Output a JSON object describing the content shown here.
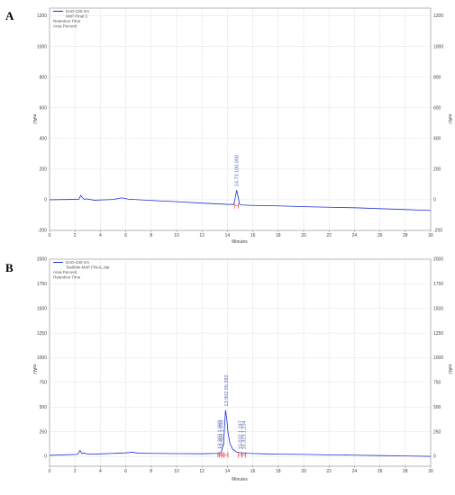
{
  "chart_data": [
    {
      "panel_label": "A",
      "type": "line",
      "xlabel": "Minutes",
      "ylabel": "mAU",
      "xlim": [
        0,
        30
      ],
      "ylim": [
        -200,
        1250
      ],
      "x_ticks": [
        0,
        2,
        4,
        6,
        8,
        10,
        12,
        14,
        16,
        18,
        20,
        22,
        24,
        26,
        28,
        30
      ],
      "y_ticks": [
        -200,
        0,
        200,
        400,
        600,
        800,
        1000,
        1200
      ],
      "grid": "dashed",
      "legend_lines": [
        "DAD-225 nm",
        "MnP Final 3",
        "Retention Time",
        "Area Percent"
      ],
      "series": [
        {
          "name": "MnP Final 3",
          "x": [
            0,
            2.3,
            2.45,
            2.6,
            2.75,
            2.9,
            3.5,
            5.0,
            5.5,
            5.7,
            6.2,
            8,
            10,
            12,
            14,
            14.5,
            14.6,
            14.73,
            14.85,
            14.95,
            15.1,
            16,
            18,
            20,
            22,
            24,
            26,
            28,
            30
          ],
          "y": [
            0,
            3,
            28,
            12,
            2,
            6,
            -3,
            2,
            10,
            12,
            4,
            -5,
            -13,
            -22,
            -30,
            -31,
            5,
            63,
            15,
            -28,
            -34,
            -37,
            -40,
            -45,
            -49,
            -52,
            -58,
            -64,
            -70
          ]
        }
      ],
      "peaks": [
        {
          "rt": "14.73",
          "area": "100.000",
          "x": 14.73,
          "y": 63
        }
      ]
    },
    {
      "panel_label": "B",
      "type": "line",
      "xlabel": "Minutes",
      "ylabel": "mAU",
      "xlim": [
        0,
        30
      ],
      "ylim": [
        -100,
        2000
      ],
      "x_ticks": [
        0,
        2,
        4,
        6,
        8,
        10,
        12,
        14,
        16,
        18,
        20,
        22,
        24,
        26,
        28,
        30
      ],
      "y_ticks": [
        0,
        250,
        500,
        750,
        1000,
        1250,
        1500,
        1750,
        2000
      ],
      "grid": "dashed",
      "legend_lines": [
        "DAD-230 nm",
        "Taxifolin-MnP FINAL.dat",
        "Area Percent",
        "Retention Time"
      ],
      "series": [
        {
          "name": "Taxifolin-MnP FINAL.dat",
          "x": [
            0,
            2.2,
            2.4,
            2.55,
            2.7,
            3.0,
            4,
            5,
            6,
            6.5,
            7,
            8,
            10,
            12,
            13.3,
            13.5,
            13.7,
            13.85,
            13.95,
            14.05,
            14.2,
            14.4,
            14.7,
            15.1,
            15.6,
            16.2,
            17,
            18,
            20,
            22,
            24,
            26,
            28,
            30
          ],
          "y": [
            10,
            20,
            60,
            28,
            35,
            22,
            25,
            30,
            35,
            42,
            32,
            30,
            28,
            26,
            30,
            38,
            120,
            470,
            380,
            240,
            130,
            75,
            45,
            35,
            30,
            28,
            25,
            22,
            20,
            15,
            12,
            8,
            4,
            0
          ]
        }
      ],
      "peaks": [
        {
          "rt": "13.393",
          "area": "1.069",
          "x": 13.4,
          "y": 38
        },
        {
          "rt": "13.460",
          "area": "1.058",
          "x": 13.52,
          "y": 40
        },
        {
          "rt": "13.902",
          "area": "95.392",
          "x": 13.9,
          "y": 470
        },
        {
          "rt": "15.032",
          "area": "1.247",
          "x": 15.0,
          "y": 35
        },
        {
          "rt": "15.323",
          "area": "1.234",
          "x": 15.3,
          "y": 32
        }
      ]
    }
  ]
}
